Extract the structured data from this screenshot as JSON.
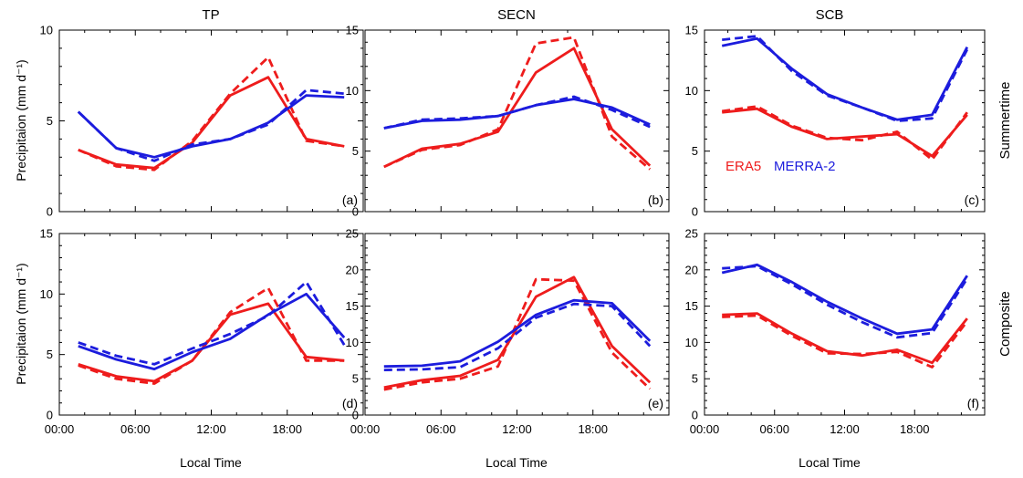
{
  "colors": {
    "era5": "#ee1c1c",
    "merra2": "#1c1cdd"
  },
  "column_titles": [
    "TP",
    "SECN",
    "SCB"
  ],
  "row_labels": [
    "Summertime",
    "Composite"
  ],
  "ylabel": "Precipitaion (mm d⁻¹)",
  "xlabel": "Local Time",
  "legend": {
    "era5": "ERA5",
    "merra2": "MERRA-2"
  },
  "chart_data": [
    {
      "type": "line",
      "panel": "(a)",
      "ylim": [
        0,
        10
      ],
      "yticks": [
        0,
        5,
        10
      ],
      "xlim": [
        0,
        24
      ],
      "xticks": [
        "00:00",
        "06:00",
        "12:00",
        "18:00"
      ],
      "x": [
        1.5,
        4.5,
        7.5,
        10.5,
        13.5,
        16.5,
        19.5,
        22.5
      ],
      "series": [
        {
          "name": "ERA5",
          "style": "solid",
          "values": [
            3.4,
            2.6,
            2.4,
            3.8,
            6.4,
            7.4,
            4.0,
            3.6
          ]
        },
        {
          "name": "ERA5",
          "style": "dashed",
          "values": [
            3.4,
            2.5,
            2.3,
            3.9,
            6.5,
            8.5,
            3.9,
            3.6
          ]
        },
        {
          "name": "MERRA-2",
          "style": "solid",
          "values": [
            5.5,
            3.5,
            3.0,
            3.6,
            4.0,
            4.9,
            6.4,
            6.3
          ]
        },
        {
          "name": "MERRA-2",
          "style": "dashed",
          "values": [
            5.5,
            3.5,
            2.8,
            3.7,
            4.0,
            4.8,
            6.7,
            6.5
          ]
        }
      ]
    },
    {
      "type": "line",
      "panel": "(b)",
      "ylim": [
        0,
        15
      ],
      "yticks": [
        0,
        5,
        10,
        15
      ],
      "xlim": [
        0,
        24
      ],
      "xticks": [
        "00:00",
        "06:00",
        "12:00",
        "18:00"
      ],
      "x": [
        1.5,
        4.5,
        7.5,
        10.5,
        13.5,
        16.5,
        19.5,
        22.5
      ],
      "series": [
        {
          "name": "ERA5",
          "style": "solid",
          "values": [
            3.7,
            5.2,
            5.6,
            6.6,
            11.5,
            13.5,
            6.8,
            3.8
          ]
        },
        {
          "name": "ERA5",
          "style": "dashed",
          "values": [
            3.7,
            5.1,
            5.5,
            6.8,
            13.9,
            14.4,
            6.2,
            3.5
          ]
        },
        {
          "name": "MERRA-2",
          "style": "solid",
          "values": [
            6.9,
            7.5,
            7.6,
            7.9,
            8.8,
            9.3,
            8.6,
            7.2
          ]
        },
        {
          "name": "MERRA-2",
          "style": "dashed",
          "values": [
            6.9,
            7.6,
            7.7,
            7.9,
            8.8,
            9.5,
            8.4,
            7.0
          ]
        }
      ]
    },
    {
      "type": "line",
      "panel": "(c)",
      "ylim": [
        0,
        15
      ],
      "yticks": [
        0,
        5,
        10,
        15
      ],
      "xlim": [
        0,
        24
      ],
      "xticks": [
        "00:00",
        "06:00",
        "12:00",
        "18:00"
      ],
      "x": [
        1.5,
        4.5,
        7.5,
        10.5,
        13.5,
        16.5,
        19.5,
        22.5
      ],
      "series": [
        {
          "name": "ERA5",
          "style": "solid",
          "values": [
            8.2,
            8.5,
            7.0,
            6.0,
            6.2,
            6.4,
            4.6,
            8.0
          ]
        },
        {
          "name": "ERA5",
          "style": "dashed",
          "values": [
            8.3,
            8.7,
            7.1,
            6.1,
            5.9,
            6.6,
            4.3,
            8.2
          ]
        },
        {
          "name": "MERRA-2",
          "style": "solid",
          "values": [
            13.7,
            14.3,
            11.8,
            9.7,
            8.6,
            7.6,
            8.0,
            13.6
          ]
        },
        {
          "name": "MERRA-2",
          "style": "dashed",
          "values": [
            14.2,
            14.5,
            11.6,
            9.6,
            8.6,
            7.5,
            7.7,
            13.4
          ]
        }
      ]
    },
    {
      "type": "line",
      "panel": "(d)",
      "ylim": [
        0,
        15
      ],
      "yticks": [
        0,
        5,
        10,
        15
      ],
      "xlim": [
        0,
        24
      ],
      "xticks": [
        "00:00",
        "06:00",
        "12:00",
        "18:00"
      ],
      "x": [
        1.5,
        4.5,
        7.5,
        10.5,
        13.5,
        16.5,
        19.5,
        22.5
      ],
      "series": [
        {
          "name": "ERA5",
          "style": "solid",
          "values": [
            4.2,
            3.2,
            2.8,
            4.5,
            8.3,
            9.2,
            4.8,
            4.5
          ]
        },
        {
          "name": "ERA5",
          "style": "dashed",
          "values": [
            4.1,
            3.0,
            2.6,
            4.5,
            8.5,
            10.5,
            4.5,
            4.5
          ]
        },
        {
          "name": "MERRA-2",
          "style": "solid",
          "values": [
            5.7,
            4.6,
            3.8,
            5.2,
            6.3,
            8.3,
            10.0,
            6.4
          ]
        },
        {
          "name": "MERRA-2",
          "style": "dashed",
          "values": [
            6.0,
            4.9,
            4.2,
            5.5,
            6.7,
            8.2,
            11.0,
            5.8
          ]
        }
      ]
    },
    {
      "type": "line",
      "panel": "(e)",
      "ylim": [
        0,
        25
      ],
      "yticks": [
        0,
        5,
        10,
        15,
        20,
        25
      ],
      "xlim": [
        0,
        24
      ],
      "xticks": [
        "00:00",
        "06:00",
        "12:00",
        "18:00"
      ],
      "x": [
        1.5,
        4.5,
        7.5,
        10.5,
        13.5,
        16.5,
        19.5,
        22.5
      ],
      "series": [
        {
          "name": "ERA5",
          "style": "solid",
          "values": [
            3.8,
            4.8,
            5.4,
            7.6,
            16.3,
            19.0,
            9.5,
            4.5
          ]
        },
        {
          "name": "ERA5",
          "style": "dashed",
          "values": [
            3.5,
            4.5,
            5.0,
            6.7,
            18.7,
            18.5,
            8.6,
            3.6
          ]
        },
        {
          "name": "MERRA-2",
          "style": "solid",
          "values": [
            6.7,
            6.8,
            7.4,
            10.1,
            13.8,
            15.8,
            15.4,
            10.2
          ]
        },
        {
          "name": "MERRA-2",
          "style": "dashed",
          "values": [
            6.2,
            6.3,
            6.6,
            9.2,
            13.4,
            15.3,
            15.0,
            9.5
          ]
        }
      ]
    },
    {
      "type": "line",
      "panel": "(f)",
      "ylim": [
        0,
        25
      ],
      "yticks": [
        0,
        5,
        10,
        15,
        20,
        25
      ],
      "xlim": [
        0,
        24
      ],
      "xticks": [
        "00:00",
        "06:00",
        "12:00",
        "18:00"
      ],
      "x": [
        1.5,
        4.5,
        7.5,
        10.5,
        13.5,
        16.5,
        19.5,
        22.5
      ],
      "series": [
        {
          "name": "ERA5",
          "style": "solid",
          "values": [
            13.8,
            14.0,
            11.2,
            8.8,
            8.2,
            9.0,
            7.2,
            13.3
          ]
        },
        {
          "name": "ERA5",
          "style": "dashed",
          "values": [
            13.5,
            13.7,
            10.9,
            8.5,
            8.4,
            8.7,
            6.6,
            12.9
          ]
        },
        {
          "name": "MERRA-2",
          "style": "solid",
          "values": [
            19.6,
            20.7,
            18.3,
            15.6,
            13.3,
            11.2,
            11.8,
            19.2
          ]
        },
        {
          "name": "MERRA-2",
          "style": "dashed",
          "values": [
            20.2,
            20.5,
            18.0,
            15.2,
            12.8,
            10.7,
            11.3,
            18.8
          ]
        }
      ]
    }
  ]
}
